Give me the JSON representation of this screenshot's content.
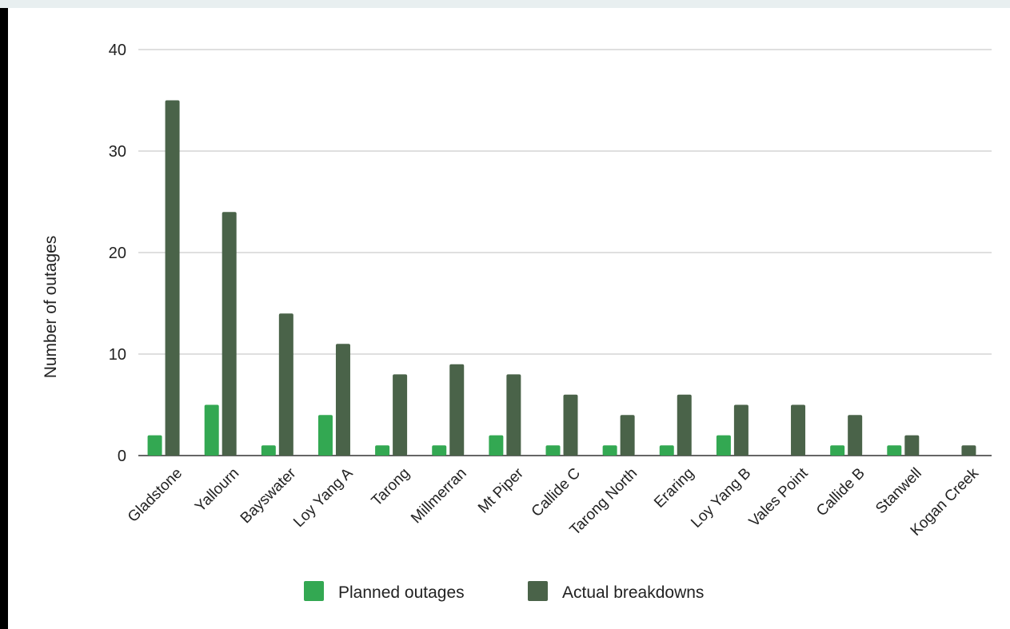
{
  "chart_data": {
    "type": "bar",
    "title": "",
    "xlabel": "",
    "ylabel": "Number of outages",
    "ylim": [
      0,
      40
    ],
    "yticks": [
      0,
      10,
      20,
      30,
      40
    ],
    "grid": true,
    "legend_position": "bottom",
    "categories": [
      "Gladstone",
      "Yallourn",
      "Bayswater",
      "Loy Yang A",
      "Tarong",
      "Millmerran",
      "Mt Piper",
      "Callide C",
      "Tarong North",
      "Eraring",
      "Loy Yang B",
      "Vales Point",
      "Callide B",
      "Stanwell",
      "Kogan Creek"
    ],
    "series": [
      {
        "name": "Planned outages",
        "color": "#33a852",
        "values": [
          2,
          5,
          1,
          4,
          1,
          1,
          2,
          1,
          1,
          1,
          2,
          0,
          1,
          1,
          0
        ]
      },
      {
        "name": "Actual breakdowns",
        "color": "#4a6349",
        "values": [
          35,
          24,
          14,
          11,
          8,
          9,
          8,
          6,
          4,
          6,
          5,
          5,
          4,
          2,
          1
        ]
      }
    ]
  }
}
